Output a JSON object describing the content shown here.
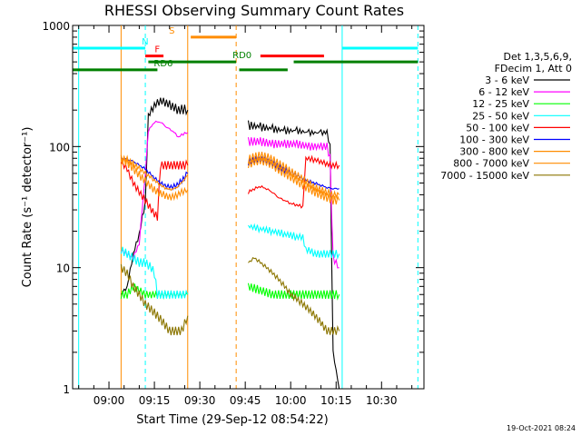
{
  "chart_data": {
    "type": "line",
    "title": "RHESSI Observing Summary Count Rates",
    "xlabel": "Start Time (29-Sep-12 08:54:22)",
    "ylabel": "Count Rate (s⁻¹ detector⁻¹)",
    "yscale": "log",
    "ylim": [
      1,
      1000
    ],
    "xlim": [
      -12,
      104
    ],
    "x_ticks": [
      {
        "t": 0,
        "label": "09:00"
      },
      {
        "t": 15,
        "label": "09:15"
      },
      {
        "t": 30,
        "label": "09:30"
      },
      {
        "t": 45,
        "label": "09:45"
      },
      {
        "t": 60,
        "label": "10:00"
      },
      {
        "t": 75,
        "label": "10:15"
      },
      {
        "t": 90,
        "label": "10:30"
      }
    ],
    "y_ticks": [
      {
        "v": 1,
        "label": "1"
      },
      {
        "v": 10,
        "label": "10"
      },
      {
        "v": 100,
        "label": "100"
      },
      {
        "v": 1000,
        "label": "1000"
      }
    ],
    "legend_header": [
      "Det 1,3,5,6,9,",
      "FDecim 1, Att 0"
    ],
    "series": [
      {
        "name": "3 - 6 keV",
        "color": "#000000",
        "seg1": [
          [
            4,
            6
          ],
          [
            6,
            7
          ],
          [
            8,
            13
          ],
          [
            10,
            19
          ],
          [
            12,
            35
          ],
          [
            13,
            180
          ],
          [
            15,
            220
          ],
          [
            17,
            240
          ],
          [
            19,
            230
          ],
          [
            21,
            215
          ],
          [
            23,
            200
          ],
          [
            25,
            205
          ],
          [
            26,
            200
          ]
        ],
        "seg2": [
          [
            46,
            150
          ],
          [
            50,
            145
          ],
          [
            54,
            140
          ],
          [
            58,
            135
          ],
          [
            62,
            135
          ],
          [
            66,
            130
          ],
          [
            70,
            130
          ],
          [
            72,
            130
          ],
          [
            73,
            100
          ],
          [
            74,
            2
          ],
          [
            76,
            1
          ]
        ]
      },
      {
        "name": "6 - 12 keV",
        "color": "#ff00ff",
        "seg1": [
          [
            4,
            14
          ],
          [
            6,
            13
          ],
          [
            8,
            12
          ],
          [
            10,
            16
          ],
          [
            12,
            60
          ],
          [
            13,
            135
          ],
          [
            15,
            160
          ],
          [
            17,
            160
          ],
          [
            19,
            145
          ],
          [
            21,
            135
          ],
          [
            23,
            120
          ],
          [
            25,
            130
          ],
          [
            26,
            130
          ]
        ],
        "seg2": [
          [
            46,
            110
          ],
          [
            50,
            110
          ],
          [
            54,
            105
          ],
          [
            58,
            105
          ],
          [
            62,
            105
          ],
          [
            66,
            100
          ],
          [
            70,
            100
          ],
          [
            72,
            100
          ],
          [
            73,
            80
          ],
          [
            74,
            12
          ],
          [
            76,
            10
          ]
        ]
      },
      {
        "name": "12 - 25 keV",
        "color": "#00ff00",
        "seg1": [
          [
            4,
            6
          ],
          [
            6,
            6
          ],
          [
            8,
            7
          ],
          [
            10,
            6.5
          ],
          [
            12,
            6
          ],
          [
            14,
            6
          ],
          [
            16,
            6
          ],
          [
            18,
            6
          ],
          [
            20,
            6
          ],
          [
            22,
            6
          ],
          [
            24,
            6
          ],
          [
            26,
            6
          ]
        ],
        "seg2": [
          [
            46,
            7
          ],
          [
            50,
            6.5
          ],
          [
            54,
            6
          ],
          [
            58,
            6
          ],
          [
            62,
            6
          ],
          [
            66,
            6
          ],
          [
            70,
            6
          ],
          [
            72,
            6
          ],
          [
            74,
            6
          ],
          [
            76,
            6
          ]
        ]
      },
      {
        "name": "25 - 50 keV",
        "color": "#00ffff",
        "seg1": [
          [
            4,
            14
          ],
          [
            6,
            13
          ],
          [
            8,
            12
          ],
          [
            10,
            11
          ],
          [
            12,
            11
          ],
          [
            14,
            10
          ],
          [
            15,
            9
          ],
          [
            16,
            6
          ],
          [
            18,
            6
          ],
          [
            20,
            6
          ],
          [
            22,
            6
          ],
          [
            24,
            6
          ],
          [
            26,
            6
          ]
        ],
        "seg2": [
          [
            46,
            22
          ],
          [
            50,
            21
          ],
          [
            54,
            20
          ],
          [
            58,
            19
          ],
          [
            62,
            18
          ],
          [
            64,
            18
          ],
          [
            65,
            14
          ],
          [
            66,
            14
          ],
          [
            68,
            13
          ],
          [
            70,
            13
          ],
          [
            72,
            13
          ],
          [
            74,
            13
          ],
          [
            76,
            13
          ]
        ]
      },
      {
        "name": "50 - 100 keV",
        "color": "#ff0000",
        "seg1": [
          [
            4,
            75
          ],
          [
            6,
            65
          ],
          [
            8,
            50
          ],
          [
            10,
            42
          ],
          [
            12,
            36
          ],
          [
            14,
            30
          ],
          [
            16,
            26
          ],
          [
            17,
            70
          ],
          [
            20,
            70
          ],
          [
            22,
            70
          ],
          [
            24,
            70
          ],
          [
            26,
            70
          ]
        ],
        "seg2": [
          [
            46,
            42
          ],
          [
            48,
            45
          ],
          [
            50,
            47
          ],
          [
            52,
            45
          ],
          [
            54,
            42
          ],
          [
            56,
            38
          ],
          [
            58,
            36
          ],
          [
            60,
            34
          ],
          [
            62,
            33
          ],
          [
            64,
            32
          ],
          [
            65,
            80
          ],
          [
            68,
            78
          ],
          [
            70,
            75
          ],
          [
            72,
            72
          ],
          [
            74,
            70
          ],
          [
            76,
            70
          ]
        ]
      },
      {
        "name": "100 - 300 keV",
        "color": "#0000ff",
        "seg1": [
          [
            4,
            80
          ],
          [
            6,
            78
          ],
          [
            8,
            75
          ],
          [
            10,
            70
          ],
          [
            12,
            65
          ],
          [
            14,
            58
          ],
          [
            16,
            52
          ],
          [
            18,
            48
          ],
          [
            20,
            46
          ],
          [
            22,
            47
          ],
          [
            24,
            52
          ],
          [
            26,
            60
          ]
        ],
        "seg2": [
          [
            46,
            75
          ],
          [
            48,
            78
          ],
          [
            50,
            78
          ],
          [
            52,
            76
          ],
          [
            54,
            72
          ],
          [
            56,
            68
          ],
          [
            58,
            64
          ],
          [
            60,
            62
          ],
          [
            62,
            58
          ],
          [
            64,
            55
          ],
          [
            66,
            52
          ],
          [
            68,
            50
          ],
          [
            70,
            48
          ],
          [
            72,
            46
          ],
          [
            74,
            45
          ],
          [
            76,
            45
          ]
        ]
      },
      {
        "name": "300 - 800 keV",
        "color": "#ff8c00",
        "seg1": [
          [
            4,
            80
          ],
          [
            6,
            78
          ],
          [
            8,
            72
          ],
          [
            10,
            66
          ],
          [
            12,
            60
          ],
          [
            14,
            55
          ],
          [
            16,
            50
          ],
          [
            18,
            46
          ],
          [
            20,
            44
          ],
          [
            22,
            45
          ],
          [
            24,
            50
          ],
          [
            26,
            58
          ]
        ],
        "seg2": [
          [
            46,
            78
          ],
          [
            48,
            82
          ],
          [
            50,
            84
          ],
          [
            52,
            82
          ],
          [
            54,
            78
          ],
          [
            56,
            72
          ],
          [
            58,
            68
          ],
          [
            60,
            62
          ],
          [
            62,
            58
          ],
          [
            64,
            54
          ],
          [
            66,
            50
          ],
          [
            68,
            46
          ],
          [
            70,
            44
          ],
          [
            72,
            42
          ],
          [
            74,
            40
          ],
          [
            76,
            40
          ]
        ]
      },
      {
        "name": "800 - 7000 keV",
        "color": "#ff8c00",
        "seg1": [
          [
            4,
            78
          ],
          [
            6,
            74
          ],
          [
            8,
            66
          ],
          [
            10,
            58
          ],
          [
            12,
            52
          ],
          [
            14,
            46
          ],
          [
            16,
            42
          ],
          [
            18,
            40
          ],
          [
            20,
            38
          ],
          [
            22,
            39
          ],
          [
            24,
            42
          ],
          [
            26,
            44
          ]
        ],
        "seg2": [
          [
            46,
            70
          ],
          [
            48,
            74
          ],
          [
            50,
            76
          ],
          [
            52,
            74
          ],
          [
            54,
            70
          ],
          [
            56,
            64
          ],
          [
            58,
            60
          ],
          [
            60,
            56
          ],
          [
            62,
            52
          ],
          [
            64,
            48
          ],
          [
            66,
            45
          ],
          [
            68,
            42
          ],
          [
            70,
            40
          ],
          [
            72,
            38
          ],
          [
            74,
            36
          ],
          [
            76,
            36
          ]
        ]
      },
      {
        "name": "7000 - 15000 keV",
        "color": "#8b7500",
        "seg1": [
          [
            4,
            10
          ],
          [
            6,
            9
          ],
          [
            8,
            7
          ],
          [
            10,
            6
          ],
          [
            12,
            5
          ],
          [
            14,
            4.5
          ],
          [
            16,
            4
          ],
          [
            18,
            3.5
          ],
          [
            20,
            3
          ],
          [
            22,
            3
          ],
          [
            24,
            3
          ],
          [
            26,
            4
          ]
        ],
        "seg2": [
          [
            46,
            11
          ],
          [
            48,
            12
          ],
          [
            50,
            11
          ],
          [
            52,
            10
          ],
          [
            54,
            9
          ],
          [
            56,
            8
          ],
          [
            58,
            7
          ],
          [
            60,
            6
          ],
          [
            62,
            5.5
          ],
          [
            64,
            5
          ],
          [
            66,
            4.5
          ],
          [
            68,
            4
          ],
          [
            70,
            3.5
          ],
          [
            72,
            3
          ],
          [
            74,
            3
          ],
          [
            76,
            3
          ]
        ]
      }
    ],
    "flags": [
      {
        "label": "N",
        "color": "#00ffff",
        "level": 650,
        "segments": [
          [
            -12,
            12
          ],
          [
            77,
            102
          ]
        ]
      },
      {
        "label": "S",
        "color": "#ff8c00",
        "level": 800,
        "segments": [
          [
            27,
            42
          ]
        ]
      },
      {
        "label": "F",
        "color": "#ff0000",
        "level": 560,
        "segments": [
          [
            12,
            18
          ],
          [
            50,
            71
          ]
        ]
      },
      {
        "label": "RD0",
        "color": "#008000",
        "level": 500,
        "segments": [
          [
            13,
            42
          ],
          [
            61,
            102
          ]
        ]
      },
      {
        "label": "RD6",
        "color": "#008000",
        "level": 430,
        "segments": [
          [
            -12,
            16
          ],
          [
            43,
            59
          ]
        ]
      }
    ],
    "vlines": [
      {
        "t": -10,
        "color": "#00ffff",
        "style": "solid"
      },
      {
        "t": 4,
        "color": "#ff8c00",
        "style": "solid"
      },
      {
        "t": 12,
        "color": "#00ffff",
        "style": "dashed"
      },
      {
        "t": 26,
        "color": "#ff8c00",
        "style": "solid"
      },
      {
        "t": 42,
        "color": "#ff8c00",
        "style": "dashed"
      },
      {
        "t": 77,
        "color": "#00ffff",
        "style": "solid"
      },
      {
        "t": 102,
        "color": "#00ffff",
        "style": "dashed"
      }
    ]
  },
  "timestamp": "19-Oct-2021 08:24"
}
